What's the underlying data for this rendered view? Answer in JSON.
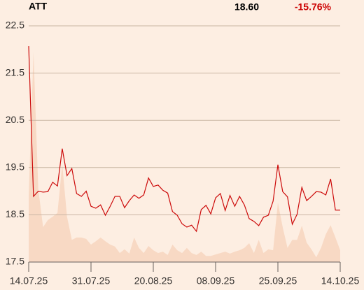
{
  "header": {
    "symbol": "ATT",
    "price": "18.60",
    "change": "-15.76%",
    "change_color": "#cc0000"
  },
  "chart_data": {
    "type": "line",
    "categories": [
      "14.07.25",
      null,
      null,
      null,
      null,
      null,
      null,
      null,
      null,
      null,
      null,
      null,
      null,
      "31.07.25",
      null,
      null,
      null,
      null,
      null,
      null,
      null,
      null,
      null,
      null,
      null,
      null,
      "20.08.25",
      null,
      null,
      null,
      null,
      null,
      null,
      null,
      null,
      null,
      null,
      null,
      null,
      "08.09.25",
      null,
      null,
      null,
      null,
      null,
      null,
      null,
      null,
      null,
      null,
      null,
      null,
      "25.09.25",
      null,
      null,
      null,
      null,
      null,
      null,
      null,
      null,
      null,
      null,
      null,
      null,
      "14.10.25"
    ],
    "series": [
      {
        "color": "#cc0a0a",
        "values": [
          22.07,
          18.89,
          19.0,
          18.98,
          18.99,
          19.19,
          19.11,
          19.9,
          19.33,
          19.48,
          18.95,
          18.89,
          19.0,
          18.68,
          18.64,
          18.71,
          18.49,
          18.68,
          18.89,
          18.89,
          18.65,
          18.8,
          18.92,
          18.85,
          18.92,
          19.28,
          19.1,
          19.13,
          19.02,
          18.96,
          18.57,
          18.49,
          18.31,
          18.24,
          18.28,
          18.15,
          18.61,
          18.7,
          18.52,
          18.86,
          18.95,
          18.59,
          18.91,
          18.68,
          18.89,
          18.71,
          18.42,
          18.36,
          18.27,
          18.45,
          18.49,
          18.79,
          19.56,
          18.99,
          18.88,
          18.3,
          18.51,
          19.08,
          18.8,
          18.89,
          18.99,
          18.98,
          18.92,
          19.26,
          18.6,
          18.6
        ]
      },
      {
        "type": "area",
        "color": "#f8d9c4",
        "values": [
          18.91,
          21.94,
          19.05,
          18.24,
          18.39,
          18.46,
          18.54,
          19.57,
          18.46,
          17.97,
          18.02,
          18.02,
          17.99,
          17.87,
          17.94,
          18.02,
          17.94,
          17.87,
          17.83,
          17.69,
          17.77,
          17.68,
          18.02,
          17.8,
          17.69,
          17.84,
          17.75,
          17.69,
          17.72,
          17.65,
          17.87,
          17.75,
          17.69,
          17.8,
          17.69,
          17.65,
          17.72,
          17.63,
          17.63,
          17.66,
          17.69,
          17.72,
          17.68,
          17.72,
          17.75,
          17.8,
          17.9,
          17.69,
          17.97,
          17.69,
          17.77,
          17.75,
          18.76,
          18.24,
          17.8,
          17.97,
          17.97,
          18.27,
          17.91,
          17.77,
          17.6,
          17.8,
          18.09,
          18.28,
          18.02,
          17.75
        ]
      }
    ],
    "ylim": [
      17.5,
      22.5
    ],
    "yticks": [
      17.5,
      18.5,
      19.5,
      20.5,
      21.5,
      22.5
    ],
    "grid": true
  }
}
